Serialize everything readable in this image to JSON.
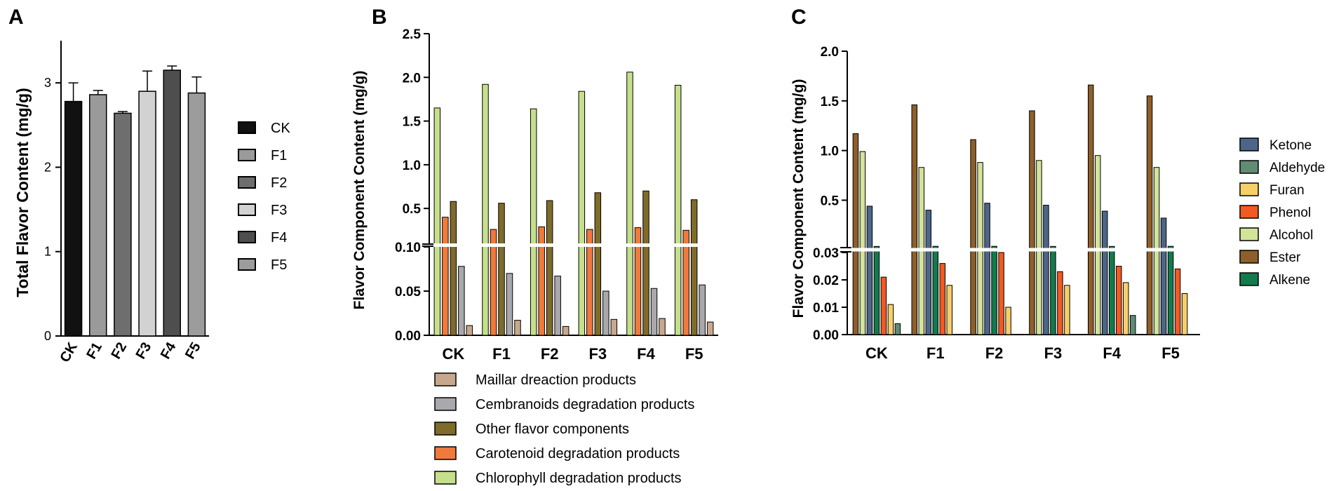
{
  "chart_data": [
    {
      "panel": "A",
      "type": "bar",
      "ylabel": "Total Flavor Content (mg/g)",
      "categories": [
        "CK",
        "F1",
        "F2",
        "F3",
        "F4",
        "F5"
      ],
      "values": [
        2.78,
        2.86,
        2.64,
        2.9,
        3.15,
        2.88
      ],
      "errors": [
        0.22,
        0.05,
        0.02,
        0.24,
        0.05,
        0.19
      ],
      "ylim": [
        0,
        3.5
      ],
      "yticks": [
        "0",
        "1",
        "2",
        "3"
      ],
      "colors": [
        "#111111",
        "#9a9a9a",
        "#6e6e6e",
        "#d2d2d2",
        "#4e4e4e",
        "#9c9c9c"
      ],
      "legend": [
        "CK",
        "F1",
        "F2",
        "F3",
        "F4",
        "F5"
      ]
    },
    {
      "panel": "B",
      "type": "bar",
      "ylabel": "Flavor Component Content  (mg/g)",
      "categories": [
        "CK",
        "F1",
        "F2",
        "F3",
        "F4",
        "F5"
      ],
      "broken_axis": {
        "lower": [
          0,
          0.1
        ],
        "upper": [
          0.1,
          2.5
        ]
      },
      "yticks_lower": [
        "0.00",
        "0.05",
        "0.10"
      ],
      "yticks_upper": [
        "0.5",
        "1.0",
        "1.5",
        "2.0",
        "2.5"
      ],
      "series": [
        {
          "name": "Chlorophyll degradation products",
          "color": "#c6df8c",
          "values": [
            1.65,
            1.92,
            1.64,
            1.84,
            2.06,
            1.91
          ]
        },
        {
          "name": "Carotenoid degradation products",
          "color": "#f07a3c",
          "values": [
            0.4,
            0.26,
            0.29,
            0.26,
            0.28,
            0.25
          ]
        },
        {
          "name": "Other flavor components",
          "color": "#7f6b2a",
          "values": [
            0.58,
            0.56,
            0.59,
            0.68,
            0.7,
            0.6
          ]
        },
        {
          "name": "Cembranoids degradation products",
          "color": "#a9a9ad",
          "values": [
            0.078,
            0.07,
            0.067,
            0.05,
            0.053,
            0.057
          ]
        },
        {
          "name": "Maillar dreaction products",
          "color": "#c8a88c",
          "values": [
            0.011,
            0.017,
            0.01,
            0.018,
            0.019,
            0.015
          ]
        }
      ],
      "legend_order": [
        "Maillar dreaction products",
        "Cembranoids degradation products",
        "Other flavor components",
        "Carotenoid degradation products",
        "Chlorophyll degradation products"
      ]
    },
    {
      "panel": "C",
      "type": "bar",
      "ylabel": "Flavor Component Content  (mg/g)",
      "categories": [
        "CK",
        "F1",
        "F2",
        "F3",
        "F4",
        "F5"
      ],
      "broken_axis": {
        "lower": [
          0,
          0.03
        ],
        "upper": [
          0.03,
          2.0
        ]
      },
      "yticks_lower": [
        "0.00",
        "0.01",
        "0.02",
        "0.03"
      ],
      "yticks_upper": [
        "0.5",
        "1.0",
        "1.5",
        "2.0"
      ],
      "series": [
        {
          "name": "Ester",
          "color": "#8e5f2a",
          "values": [
            1.17,
            1.46,
            1.11,
            1.4,
            1.66,
            1.55
          ]
        },
        {
          "name": "Alcohol",
          "color": "#d2e39a",
          "values": [
            0.99,
            0.83,
            0.88,
            0.9,
            0.95,
            0.83
          ]
        },
        {
          "name": "Ketone",
          "color": "#4d6688",
          "values": [
            0.44,
            0.4,
            0.47,
            0.45,
            0.39,
            0.32
          ]
        },
        {
          "name": "Alkene",
          "color": "#137a4d",
          "values": [
            0.035,
            0.036,
            0.036,
            0.035,
            0.035,
            0.036
          ]
        },
        {
          "name": "Phenol",
          "color": "#f15a22",
          "values": [
            0.021,
            0.026,
            0.03,
            0.023,
            0.025,
            0.024
          ]
        },
        {
          "name": "Furan",
          "color": "#f7cf68",
          "values": [
            0.011,
            0.018,
            0.01,
            0.018,
            0.019,
            0.015
          ]
        },
        {
          "name": "Aldehyde",
          "color": "#5f8c73",
          "values": [
            0.004,
            0.0,
            0.0,
            0.0,
            0.007,
            0.0
          ]
        }
      ],
      "legend_order": [
        "Ketone",
        "Aldehyde",
        "Furan",
        "Phenol",
        "Alcohol",
        "Ester",
        "Alkene"
      ]
    }
  ],
  "panel_labels": [
    "A",
    "B",
    "C"
  ]
}
